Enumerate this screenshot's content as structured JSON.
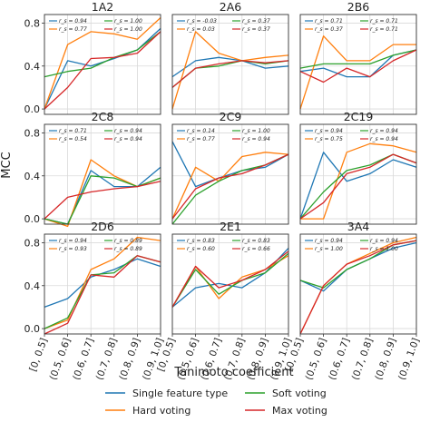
{
  "chart_data": {
    "type": "line",
    "x_categories": [
      "[0, 0.5]",
      "(0.5, 0.6]",
      "(0.6, 0.7]",
      "(0.7, 0.8]",
      "(0.8, 0.9]",
      "(0.9, 1.0]"
    ],
    "xlabel": "Tanimoto coefficient",
    "ylabel": "MCC",
    "ylim": [
      -0.05,
      0.88
    ],
    "yticks": [
      "0.0",
      "0.4",
      "0.8"
    ],
    "ytick_values": [
      0.0,
      0.4,
      0.8
    ],
    "grid": true,
    "legend": {
      "placement": "bottom-center",
      "entries": [
        {
          "label": "Single feature type",
          "color": "#1f77b4"
        },
        {
          "label": "Hard voting",
          "color": "#ff7f0e"
        },
        {
          "label": "Soft voting",
          "color": "#2ca02c"
        },
        {
          "label": "Max voting",
          "color": "#d62728"
        }
      ]
    },
    "series_colors": [
      "#1f77b4",
      "#ff7f0e",
      "#2ca02c",
      "#d62728"
    ],
    "panels": [
      {
        "title": "1A2",
        "legend_labels": [
          [
            "r_s = 0.94",
            "r_s = 1.00"
          ],
          [
            "r_s = 0.77",
            "r_s = 1.00"
          ]
        ],
        "series": [
          [
            0.0,
            0.45,
            0.4,
            0.47,
            0.55,
            0.75
          ],
          [
            0.0,
            0.6,
            0.72,
            0.7,
            0.65,
            0.85
          ],
          [
            0.3,
            0.35,
            0.38,
            0.48,
            0.55,
            0.72
          ],
          [
            0.0,
            0.2,
            0.47,
            0.48,
            0.52,
            0.72
          ]
        ]
      },
      {
        "title": "2A6",
        "legend_labels": [
          [
            "r_s = -0.03",
            "r_s = 0.37"
          ],
          [
            "r_s = 0.03",
            "r_s = 0.37"
          ]
        ],
        "series": [
          [
            0.3,
            0.45,
            0.48,
            0.45,
            0.38,
            0.4
          ],
          [
            0.0,
            0.72,
            0.52,
            0.45,
            0.48,
            0.5
          ],
          [
            0.2,
            0.38,
            0.4,
            0.45,
            0.42,
            0.45
          ],
          [
            0.2,
            0.38,
            0.42,
            0.45,
            0.43,
            0.45
          ]
        ]
      },
      {
        "title": "2B6",
        "legend_labels": [
          [
            "r_s = 0.71",
            "r_s = 0.71"
          ],
          [
            "r_s = 0.37",
            "r_s = 0.71"
          ]
        ],
        "series": [
          [
            0.35,
            0.38,
            0.3,
            0.3,
            0.5,
            0.55
          ],
          [
            0.0,
            0.68,
            0.45,
            0.45,
            0.6,
            0.6
          ],
          [
            0.38,
            0.42,
            0.42,
            0.42,
            0.5,
            0.55
          ],
          [
            0.35,
            0.25,
            0.38,
            0.3,
            0.45,
            0.55
          ]
        ]
      },
      {
        "title": "2C8",
        "legend_labels": [
          [
            "r_s = 0.71",
            "r_s = 0.94"
          ],
          [
            "r_s = 0.54",
            "r_s = 0.94"
          ]
        ],
        "series": [
          [
            0.0,
            -0.05,
            0.45,
            0.3,
            0.3,
            0.48
          ],
          [
            0.0,
            -0.07,
            0.55,
            0.4,
            0.3,
            0.38
          ],
          [
            0.0,
            -0.05,
            0.4,
            0.38,
            0.3,
            0.38
          ],
          [
            0.0,
            0.2,
            0.25,
            0.28,
            0.3,
            0.35
          ]
        ]
      },
      {
        "title": "2C9",
        "legend_labels": [
          [
            "r_s = 0.14",
            "r_s = 1.00"
          ],
          [
            "r_s = 0.77",
            "r_s = 0.94"
          ]
        ],
        "series": [
          [
            0.72,
            0.3,
            0.38,
            0.45,
            0.48,
            0.6
          ],
          [
            0.0,
            0.48,
            0.35,
            0.58,
            0.62,
            0.6
          ],
          [
            -0.05,
            0.22,
            0.35,
            0.45,
            0.5,
            0.6
          ],
          [
            0.0,
            0.28,
            0.38,
            0.42,
            0.5,
            0.6
          ]
        ]
      },
      {
        "title": "2C19",
        "legend_labels": [
          [
            "r_s = 0.94",
            "r_s = 0.94"
          ],
          [
            "r_s = 0.75",
            "r_s = 0.94"
          ]
        ],
        "series": [
          [
            0.0,
            0.62,
            0.35,
            0.42,
            0.55,
            0.48
          ],
          [
            0.0,
            0.0,
            0.62,
            0.7,
            0.68,
            0.62
          ],
          [
            0.0,
            0.25,
            0.45,
            0.5,
            0.6,
            0.52
          ],
          [
            0.0,
            0.15,
            0.42,
            0.48,
            0.6,
            0.52
          ]
        ]
      },
      {
        "title": "2D6",
        "legend_labels": [
          [
            "r_s = 0.94",
            "r_s = 0.89"
          ],
          [
            "r_s = 0.93",
            "r_s = 0.89"
          ]
        ],
        "series": [
          [
            0.2,
            0.28,
            0.48,
            0.55,
            0.65,
            0.58
          ],
          [
            0.0,
            0.08,
            0.55,
            0.65,
            0.85,
            0.82
          ],
          [
            0.0,
            0.1,
            0.5,
            0.52,
            0.68,
            0.62
          ],
          [
            -0.05,
            0.05,
            0.5,
            0.48,
            0.68,
            0.62
          ]
        ]
      },
      {
        "title": "2E1",
        "legend_labels": [
          [
            "r_s = 0.83",
            "r_s = 0.83"
          ],
          [
            "r_s = 0.60",
            "r_s = 0.66"
          ]
        ],
        "series": [
          [
            0.2,
            0.38,
            0.42,
            0.38,
            0.52,
            0.75
          ],
          [
            0.2,
            0.58,
            0.28,
            0.48,
            0.55,
            0.68
          ],
          [
            0.2,
            0.55,
            0.32,
            0.45,
            0.52,
            0.7
          ],
          [
            0.2,
            0.58,
            0.38,
            0.45,
            0.55,
            0.72
          ]
        ]
      },
      {
        "title": "3A4",
        "legend_labels": [
          [
            "r_s = 0.94",
            "r_s = 0.94"
          ],
          [
            "r_s = 1.00",
            "r_s = 1.00"
          ]
        ],
        "series": [
          [
            0.45,
            0.35,
            0.55,
            0.65,
            0.75,
            0.8
          ],
          [
            -0.05,
            0.4,
            0.6,
            0.7,
            0.8,
            0.85
          ],
          [
            0.45,
            0.38,
            0.55,
            0.65,
            0.78,
            0.82
          ],
          [
            -0.05,
            0.4,
            0.6,
            0.68,
            0.78,
            0.82
          ]
        ]
      }
    ]
  }
}
